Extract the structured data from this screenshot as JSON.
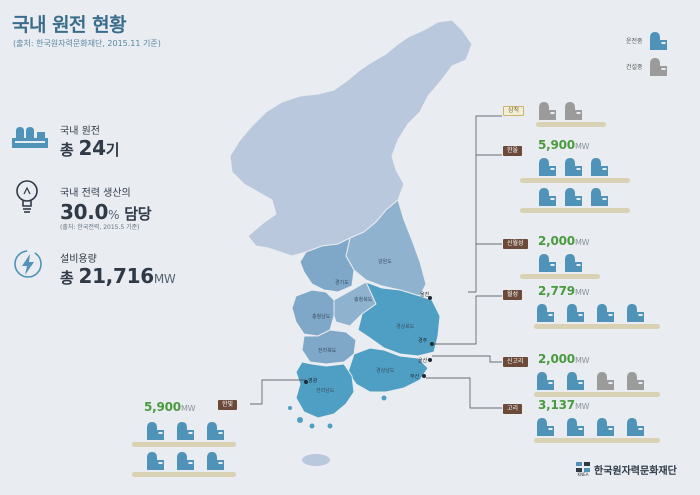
{
  "header": {
    "title": "국내 원전 현황",
    "subtitle": "(출처: 한국원자력문화재단, 2015.11 기준)"
  },
  "legend": {
    "operating": "운전중",
    "construction": "건설중"
  },
  "stats": {
    "plants_label": "국내 원전",
    "plants_prefix": "총",
    "plants_value": "24",
    "plants_suffix": "기",
    "power_label": "국내 전력 생산의",
    "power_value": "30.0",
    "power_unit": "%",
    "power_suffix": "담당",
    "power_note": "(출처: 한국전력, 2015.5 기준)",
    "capacity_label": "설비용량",
    "capacity_prefix": "총",
    "capacity_value": "21,716",
    "capacity_unit": "MW"
  },
  "plants": [
    {
      "id": "samcheok",
      "name": "삼척",
      "capacity": "",
      "unit": "",
      "operating": 0,
      "construction": 2
    },
    {
      "id": "hanul",
      "name": "한울",
      "capacity": "5,900",
      "unit": "MW",
      "operating": 6,
      "construction": 0
    },
    {
      "id": "shinhanul",
      "name": "신월성",
      "capacity": "2,000",
      "unit": "MW",
      "operating": 2,
      "construction": 0
    },
    {
      "id": "wolsong",
      "name": "월성",
      "capacity": "2,779",
      "unit": "MW",
      "operating": 4,
      "construction": 0
    },
    {
      "id": "shinkori",
      "name": "신고리",
      "capacity": "2,000",
      "unit": "MW",
      "operating": 2,
      "construction": 2
    },
    {
      "id": "kori",
      "name": "고리",
      "capacity": "3,137",
      "unit": "MW",
      "operating": 4,
      "construction": 0
    },
    {
      "id": "hanbit",
      "name": "한빛",
      "capacity": "5,900",
      "unit": "MW",
      "operating": 6,
      "construction": 0
    }
  ],
  "map_labels": {
    "cities": [
      "울진",
      "경주",
      "울산",
      "부산",
      "영광"
    ],
    "regions": [
      "강원도",
      "경기도",
      "충청북도",
      "충청남도",
      "경상북도",
      "전라북도",
      "경상남도",
      "전라남도"
    ]
  },
  "colors": {
    "operating": "#4f94b8",
    "construction": "#9b9b9b",
    "capacity": "#4a9a3f",
    "north_map": "#b9c8dc",
    "south_map": "#7fa7c7",
    "plant_region": "#4f9fc4"
  },
  "footer": {
    "logo_text": "한국원자력문화재단",
    "logo_sub": "KNEA"
  }
}
